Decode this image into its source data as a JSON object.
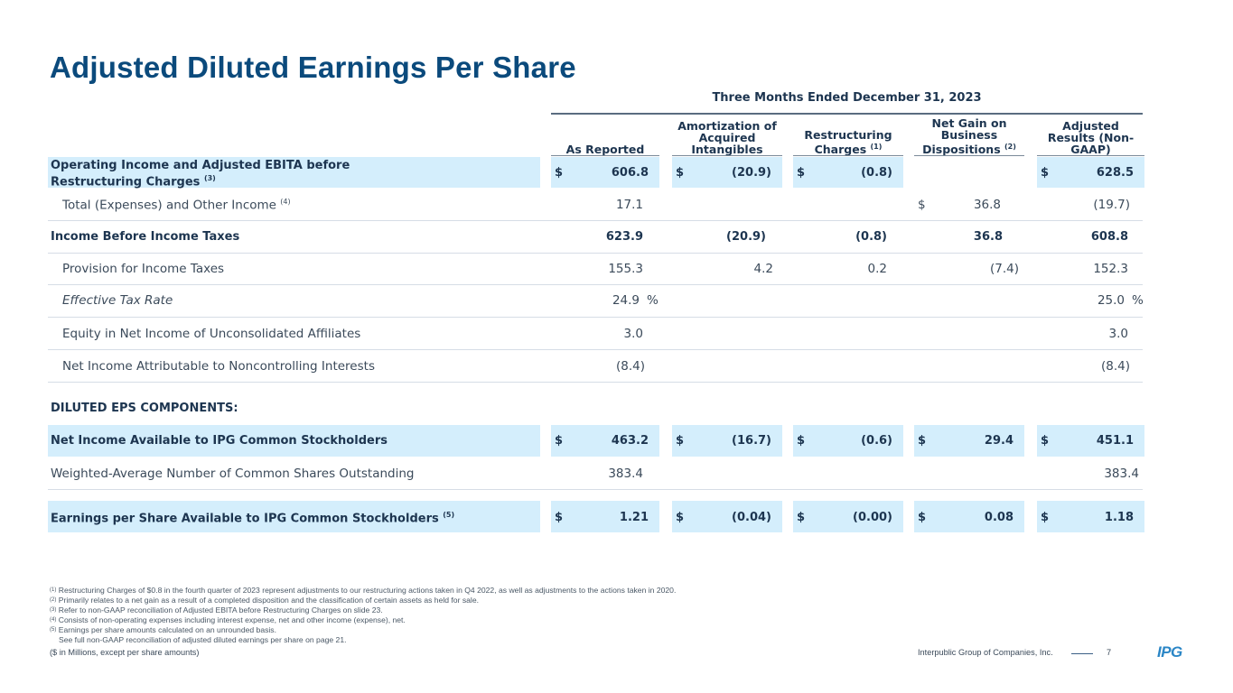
{
  "title": "Adjusted Diluted Earnings Per Share",
  "period": "Three Months Ended December 31, 2023",
  "columns": [
    {
      "label": "As Reported",
      "note": ""
    },
    {
      "label": "Amortization of Acquired Intangibles",
      "note": ""
    },
    {
      "label": "Restructuring Charges",
      "note": "(1)"
    },
    {
      "label": "Net Gain on Business Dispositions",
      "note": "(2)"
    },
    {
      "label": "Adjusted Results (Non-GAAP)",
      "note": ""
    }
  ],
  "rows": {
    "op_income": {
      "label": "Operating Income and Adjusted EBITA before Restructuring Charges",
      "note": "(3)",
      "values": [
        {
          "cur": "$",
          "val": "606.8"
        },
        {
          "cur": "$",
          "val": "(20.9)"
        },
        {
          "cur": "$",
          "val": "(0.8)"
        },
        {
          "cur": "",
          "val": ""
        },
        {
          "cur": "$",
          "val": "628.5"
        }
      ]
    },
    "total_expenses": {
      "label": "Total (Expenses) and Other Income",
      "note": "(4)",
      "values": [
        {
          "cur": "",
          "val": "17.1"
        },
        {
          "cur": "",
          "val": ""
        },
        {
          "cur": "",
          "val": ""
        },
        {
          "cur": "$",
          "val": "36.8"
        },
        {
          "cur": "",
          "val": "(19.7)"
        }
      ]
    },
    "income_before_tax": {
      "label": "Income Before Income Taxes",
      "values": [
        "623.9",
        "(20.9)",
        "(0.8)",
        "36.8",
        "608.8"
      ]
    },
    "provision": {
      "label": "Provision for Income Taxes",
      "values": [
        "155.3",
        "4.2",
        "0.2",
        "(7.4)",
        "152.3"
      ]
    },
    "etr": {
      "label": "Effective Tax Rate",
      "as_reported": "24.9",
      "adjusted": "25.0",
      "pct": "%"
    },
    "equity": {
      "label": "Equity in Net Income of Unconsolidated Affiliates",
      "as_reported": "3.0",
      "adjusted": "3.0"
    },
    "nci": {
      "label": "Net Income Attributable to Noncontrolling Interests",
      "as_reported": "(8.4)",
      "adjusted": "(8.4)"
    }
  },
  "section_label": "DILUTED EPS COMPONENTS:",
  "eps_rows": {
    "net_income": {
      "label": "Net Income Available to IPG Common Stockholders",
      "cur": "$",
      "values": [
        "463.2",
        "(16.7)",
        "(0.6)",
        "29.4",
        "451.1"
      ]
    },
    "shares": {
      "label": "Weighted-Average Number of Common Shares Outstanding",
      "as_reported": "383.4",
      "adjusted": "383.4"
    },
    "eps": {
      "label": "Earnings per Share Available to IPG Common Stockholders",
      "note": "(5)",
      "cur": "$",
      "values": [
        "1.21",
        "(0.04)",
        "(0.00)",
        "0.08",
        "1.18"
      ]
    }
  },
  "footnotes": [
    {
      "mark": "(1)",
      "text": "Restructuring Charges of $0.8 in the fourth quarter of 2023 represent adjustments to our restructuring actions taken in Q4 2022, as well as adjustments to the actions taken in 2020."
    },
    {
      "mark": "(2)",
      "text": "Primarily relates to a net gain as a result of a completed disposition and the classification of certain assets as held for sale."
    },
    {
      "mark": "(3)",
      "text": "Refer to non-GAAP reconciliation of Adjusted EBITA before Restructuring Charges on slide 23."
    },
    {
      "mark": "(4)",
      "text": "Consists of non-operating expenses including interest expense, net and other income (expense), net."
    },
    {
      "mark": "(5)",
      "text": "Earnings per share amounts calculated on an unrounded basis."
    },
    {
      "mark": "",
      "text": "See full non-GAAP reconciliation of adjusted diluted earnings per share on page 21."
    }
  ],
  "units_note": "($ in Millions, except per share amounts)",
  "company": "Interpublic Group of Companies, Inc.",
  "page_number": "7",
  "logo_text": "IPG"
}
